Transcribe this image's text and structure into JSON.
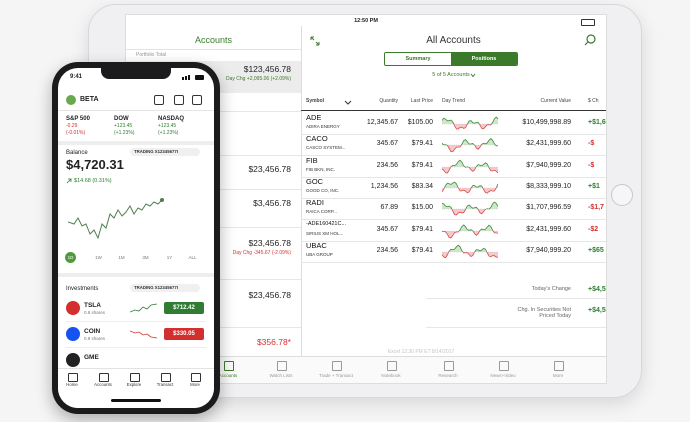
{
  "tablet": {
    "status_time": "12:50 PM",
    "sidebar": {
      "title": "Accounts",
      "portfolio_label": "Portfolio Total",
      "accounts": [
        {
          "value": "$123,456.78",
          "day_change": "Day Chg +2,095.06 (+2.09%)"
        },
        {
          "value": "$23,456.78"
        },
        {
          "value": "$3,456.78"
        },
        {
          "value": "$23,456.78",
          "day_change": "Day Chg -345.67 (-2.09%)"
        },
        {
          "value": "$23,456.78"
        },
        {
          "value": "$356.78*"
        }
      ]
    },
    "main": {
      "title": "All Accounts",
      "tabs": [
        "Summary",
        "Positions"
      ],
      "filter": "5 of 5 Accounts",
      "columns": [
        "Symbol",
        "Quantity",
        "Last Price",
        "Day Trend",
        "Current Value",
        "$ Ch"
      ],
      "positions": [
        {
          "symbol": "ADE",
          "name": "ADIRA ENERGY",
          "quantity": "12,345.67",
          "last_price": "$105.00",
          "current_value": "$10,499,998.89",
          "change": "+$1,6"
        },
        {
          "symbol": "CACO",
          "name": "CASCO SYSTEM...",
          "quantity": "345.67",
          "last_price": "$79.41",
          "current_value": "$2,431,999.60",
          "change": "-$"
        },
        {
          "symbol": "FIB",
          "name": "FIB BKN, INC.",
          "quantity": "234.56",
          "last_price": "$79.41",
          "current_value": "$7,940,999.20",
          "change": "-$"
        },
        {
          "symbol": "GOC",
          "name": "GOOD CO, INC.",
          "quantity": "1,234.56",
          "last_price": "$83.34",
          "current_value": "$8,333,999.10",
          "change": "+$1"
        },
        {
          "symbol": "RADI",
          "name": "RAICA CORP...",
          "quantity": "67.89",
          "last_price": "$15.00",
          "current_value": "$1,707,996.59",
          "change": "-$1,7"
        },
        {
          "symbol": "-ADE160421C...",
          "name": "SIRIUS XM HOL...",
          "quantity": "345.67",
          "last_price": "$79.41",
          "current_value": "$2,431,999.60",
          "change": "-$2"
        },
        {
          "symbol": "UBAC",
          "name": "UBA GROUP",
          "quantity": "234.56",
          "last_price": "$79.41",
          "current_value": "$7,940,999.20",
          "change": "+$65"
        }
      ],
      "totals": [
        {
          "label": "Today's Change",
          "value": "+$4,56"
        },
        {
          "label": "Chg. In Securities Not Priced Today",
          "value": "+$4,56"
        }
      ],
      "timestamp": "Excel 12:30 PM ET 8/14/2017"
    },
    "nav": [
      "Accounts",
      "Watch Lists",
      "Trade + Transact",
      "Notebook",
      "Research",
      "News+Video",
      "More"
    ]
  },
  "phone": {
    "status_time": "9:41",
    "user": "BETA",
    "indices": [
      {
        "name": "S&P 500",
        "change": "-0.29",
        "percent": "(-0.01%)"
      },
      {
        "name": "DOW",
        "change": "+123.45",
        "percent": "(+1.23%)"
      },
      {
        "name": "NASDAQ",
        "change": "+123.45",
        "percent": "(+1.23%)"
      }
    ],
    "balance": {
      "label": "Balance",
      "account": "TRADING X12345677I",
      "value": "$4,720.31",
      "change": "$14.68 (0.31%)",
      "ranges": [
        "1D",
        "1W",
        "1M",
        "3M",
        "1Y",
        "ALL"
      ]
    },
    "investments": {
      "label": "Investments",
      "account": "TRADING X12345677I",
      "holdings": [
        {
          "symbol": "TSLA",
          "shares": "0.8 shares",
          "price": "$712.42",
          "color": "#2e7d32",
          "logo": "#d32f2f"
        },
        {
          "symbol": "COIN",
          "shares": "0.8 shares",
          "price": "$330.05",
          "color": "#d32f2f",
          "logo": "#1652f0"
        },
        {
          "symbol": "GME",
          "logo": "#222222"
        }
      ]
    },
    "nav": [
      "Home",
      "Accounts",
      "Explore",
      "Transact",
      "More"
    ]
  }
}
